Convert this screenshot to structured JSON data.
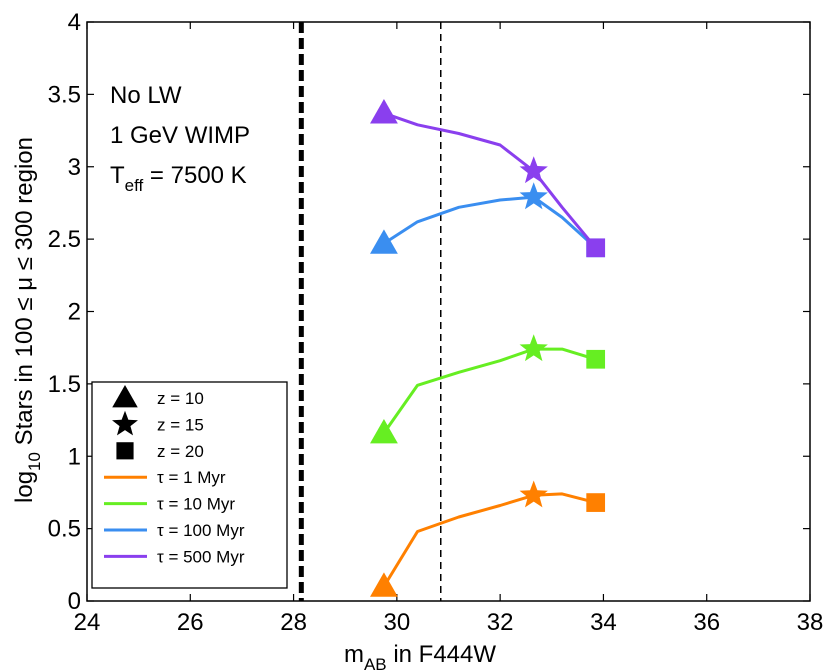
{
  "chart_data": {
    "type": "line",
    "xlabel_main": "m",
    "xlabel_sub": "AB",
    "xlabel_rest": " in F444W",
    "ylabel_pre": "log",
    "ylabel_sub": "10",
    "ylabel_rest": " Stars in 100 ≤ μ ≤ 300 region",
    "xlim": [
      24,
      38
    ],
    "ylim": [
      0,
      4
    ],
    "xticks": [
      24,
      26,
      28,
      30,
      32,
      34,
      36,
      38
    ],
    "yticks": [
      0,
      0.5,
      1,
      1.5,
      2,
      2.5,
      3,
      3.5,
      4
    ],
    "ytick_labels": [
      "0",
      "0.5",
      "1",
      "1.5",
      "2",
      "2.5",
      "3",
      "3.5",
      "4"
    ],
    "vlines": [
      {
        "x": 28.15,
        "style": "thick-dashed"
      },
      {
        "x": 30.85,
        "style": "thin-dashed"
      }
    ],
    "annotations": {
      "line1": "No LW",
      "line2": "1 GeV WIMP",
      "line3_pre": "T",
      "line3_sub": "eff",
      "line3_rest": " = 7500 K"
    },
    "series": [
      {
        "name": "τ = 1 Myr",
        "color": "#ff8000",
        "x": [
          29.75,
          30.4,
          31.2,
          32.0,
          32.65,
          33.2,
          33.85
        ],
        "y": [
          0.1,
          0.48,
          0.58,
          0.66,
          0.73,
          0.74,
          0.68
        ],
        "markers": [
          {
            "x": 29.75,
            "y": 0.1,
            "shape": "triangle"
          },
          {
            "x": 32.65,
            "y": 0.73,
            "shape": "star"
          },
          {
            "x": 33.85,
            "y": 0.68,
            "shape": "square"
          }
        ]
      },
      {
        "name": "τ = 10 Myr",
        "color": "#66ee22",
        "x": [
          29.75,
          30.4,
          31.2,
          32.0,
          32.65,
          33.2,
          33.85
        ],
        "y": [
          1.16,
          1.49,
          1.58,
          1.66,
          1.74,
          1.74,
          1.67
        ],
        "markers": [
          {
            "x": 29.75,
            "y": 1.16,
            "shape": "triangle"
          },
          {
            "x": 32.65,
            "y": 1.74,
            "shape": "star"
          },
          {
            "x": 33.85,
            "y": 1.67,
            "shape": "square"
          }
        ]
      },
      {
        "name": "τ = 100 Myr",
        "color": "#3a8ef0",
        "x": [
          29.75,
          30.4,
          31.2,
          32.0,
          32.65,
          33.2,
          33.85
        ],
        "y": [
          2.47,
          2.62,
          2.72,
          2.77,
          2.79,
          2.65,
          2.44
        ],
        "markers": [
          {
            "x": 29.75,
            "y": 2.47,
            "shape": "triangle"
          },
          {
            "x": 32.65,
            "y": 2.79,
            "shape": "star"
          },
          {
            "x": 33.85,
            "y": 2.44,
            "shape": "square"
          }
        ]
      },
      {
        "name": "τ = 500 Myr",
        "color": "#8a3fee",
        "x": [
          29.75,
          30.4,
          31.2,
          32.0,
          32.65,
          33.2,
          33.85
        ],
        "y": [
          3.37,
          3.29,
          3.23,
          3.15,
          2.97,
          2.72,
          2.44
        ],
        "markers": [
          {
            "x": 29.75,
            "y": 3.37,
            "shape": "triangle"
          },
          {
            "x": 32.65,
            "y": 2.97,
            "shape": "star"
          },
          {
            "x": 33.85,
            "y": 2.44,
            "shape": "square"
          }
        ]
      }
    ],
    "legend": {
      "placement": "bottom-left",
      "entries": [
        {
          "label": "z = 10",
          "kind": "marker",
          "shape": "triangle",
          "color": "#000000"
        },
        {
          "label": "z = 15",
          "kind": "marker",
          "shape": "star",
          "color": "#000000"
        },
        {
          "label": "z = 20",
          "kind": "marker",
          "shape": "square",
          "color": "#000000"
        },
        {
          "label": "τ = 1 Myr",
          "kind": "line",
          "color": "#ff8000"
        },
        {
          "label": "τ = 10 Myr",
          "kind": "line",
          "color": "#66ee22"
        },
        {
          "label": "τ = 100 Myr",
          "kind": "line",
          "color": "#3a8ef0"
        },
        {
          "label": "τ = 500 Myr",
          "kind": "line",
          "color": "#8a3fee"
        }
      ]
    }
  }
}
